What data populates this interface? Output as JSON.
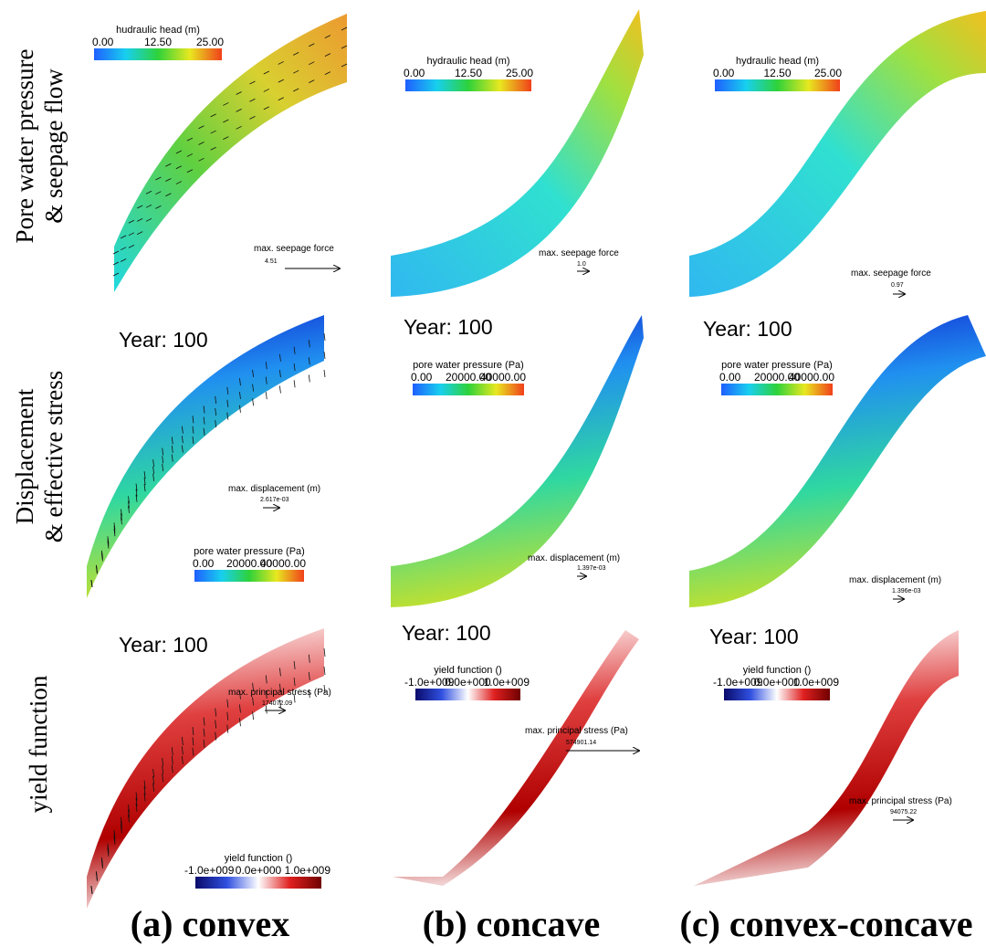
{
  "row_labels": [
    [
      "Pore water pressure",
      "& seepage flow"
    ],
    [
      "Displacement",
      "& effective stress"
    ],
    [
      "yield function"
    ]
  ],
  "column_labels": [
    "(a) convex",
    "(b) concave",
    "(c) convex-concave"
  ],
  "panels": [
    [
      {
        "colorbar_title": "hudraulic head (m)",
        "colorbar_ticks": [
          "0.00",
          "12.50",
          "25.00"
        ],
        "vector_label": "max. seepage force",
        "vector_value": "4.51"
      },
      {
        "colorbar_title": "hydraulic head (m)",
        "colorbar_ticks": [
          "0.00",
          "12.50",
          "25.00"
        ],
        "vector_label": "max. seepage force",
        "vector_value": "1.0"
      },
      {
        "colorbar_title": "hydraulic head (m)",
        "colorbar_ticks": [
          "0.00",
          "12.50",
          "25.00"
        ],
        "vector_label": "max. seepage force",
        "vector_value": "0.97"
      }
    ],
    [
      {
        "year": "Year: 100",
        "colorbar_title": "pore water pressure (Pa)",
        "colorbar_ticks": [
          "0.00",
          "20000.00",
          "40000.00"
        ],
        "vector_label": "max. displacement (m)",
        "vector_value": "2.617e-03"
      },
      {
        "year": "Year: 100",
        "colorbar_title": "pore water pressure (Pa)",
        "colorbar_ticks": [
          "0.00",
          "20000.00",
          "40000.00"
        ],
        "vector_label": "max. displacement (m)",
        "vector_value": "1.397e-03"
      },
      {
        "year": "Year: 100",
        "colorbar_title": "pore water pressure (Pa)",
        "colorbar_ticks": [
          "0.00",
          "20000.00",
          "40000.00"
        ],
        "vector_label": "max. displacement (m)",
        "vector_value": "1.396e-03"
      }
    ],
    [
      {
        "year": "Year: 100",
        "colorbar_title": "yield function ()",
        "colorbar_ticks": [
          "-1.0e+009",
          "0.0e+000",
          "1.0e+009"
        ],
        "vector_label": "max. principal stress (Pa)",
        "vector_value": "174072.09"
      },
      {
        "year": "Year: 100",
        "colorbar_title": "yield function ()",
        "colorbar_ticks": [
          "-1.0e+009",
          "0.0e+000",
          "1.0e+009"
        ],
        "vector_label": "max. principal stress (Pa)",
        "vector_value": "574901.14"
      },
      {
        "year": "Year: 100",
        "colorbar_title": "yield function ()",
        "colorbar_ticks": [
          "-1.0e+009",
          "0.0e+000",
          "1.0e+009"
        ],
        "vector_label": "max. principal stress (Pa)",
        "vector_value": "94075.22"
      }
    ]
  ]
}
